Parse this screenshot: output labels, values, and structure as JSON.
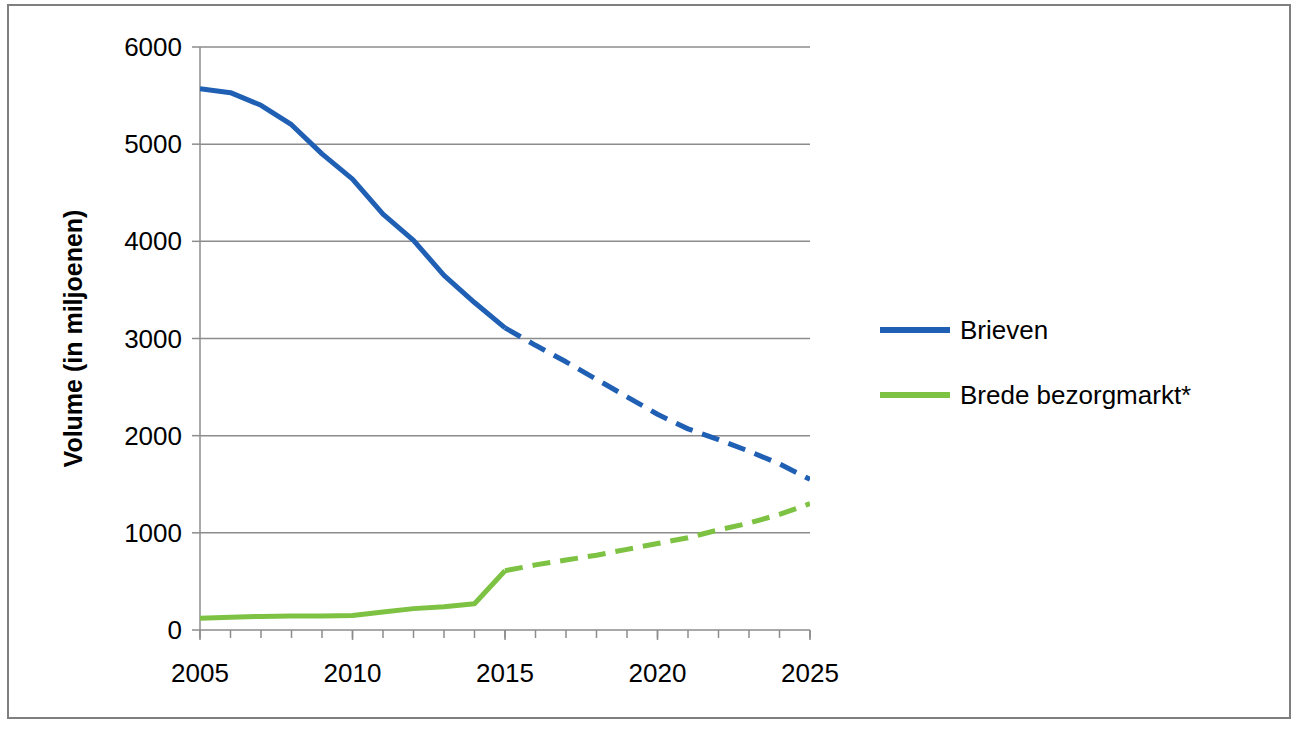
{
  "chart_data": {
    "type": "line",
    "y_label": "Volume (in miljoenen)",
    "x": [
      2005,
      2006,
      2007,
      2008,
      2009,
      2010,
      2011,
      2012,
      2013,
      2014,
      2015,
      2016,
      2017,
      2018,
      2019,
      2020,
      2021,
      2022,
      2023,
      2024,
      2025
    ],
    "series": [
      {
        "name": "Brieven",
        "color": "#1f5fb4",
        "line_style": "solid",
        "values": [
          5570,
          5530,
          5400,
          5200,
          4900,
          4640,
          4280,
          4010,
          3650,
          3370,
          3110,
          null,
          null,
          null,
          null,
          null,
          null,
          null,
          null,
          null,
          null
        ]
      },
      {
        "name": "Brieven",
        "color": "#1f5fb4",
        "line_style": "dashed",
        "values": [
          null,
          null,
          null,
          null,
          null,
          null,
          null,
          null,
          null,
          null,
          3110,
          2930,
          2760,
          2580,
          2400,
          2220,
          2070,
          1960,
          1840,
          1710,
          1550
        ]
      },
      {
        "name": "Brede bezorgmarkt*",
        "color": "#7dc242",
        "line_style": "solid",
        "values": [
          120,
          130,
          140,
          145,
          145,
          150,
          185,
          220,
          240,
          270,
          610,
          null,
          null,
          null,
          null,
          null,
          null,
          null,
          null,
          null,
          null
        ]
      },
      {
        "name": "Brede bezorgmarkt*",
        "color": "#7dc242",
        "line_style": "dashed",
        "values": [
          null,
          null,
          null,
          null,
          null,
          null,
          null,
          null,
          null,
          null,
          610,
          670,
          720,
          770,
          830,
          890,
          950,
          1030,
          1100,
          1190,
          1300
        ]
      }
    ],
    "xlim": [
      2005,
      2025
    ],
    "xticks": [
      2005,
      2010,
      2015,
      2020,
      2025
    ],
    "ylim": [
      0,
      6000
    ],
    "yticks": [
      0,
      1000,
      2000,
      3000,
      4000,
      5000,
      6000
    ],
    "grid": true,
    "legend": "right"
  }
}
